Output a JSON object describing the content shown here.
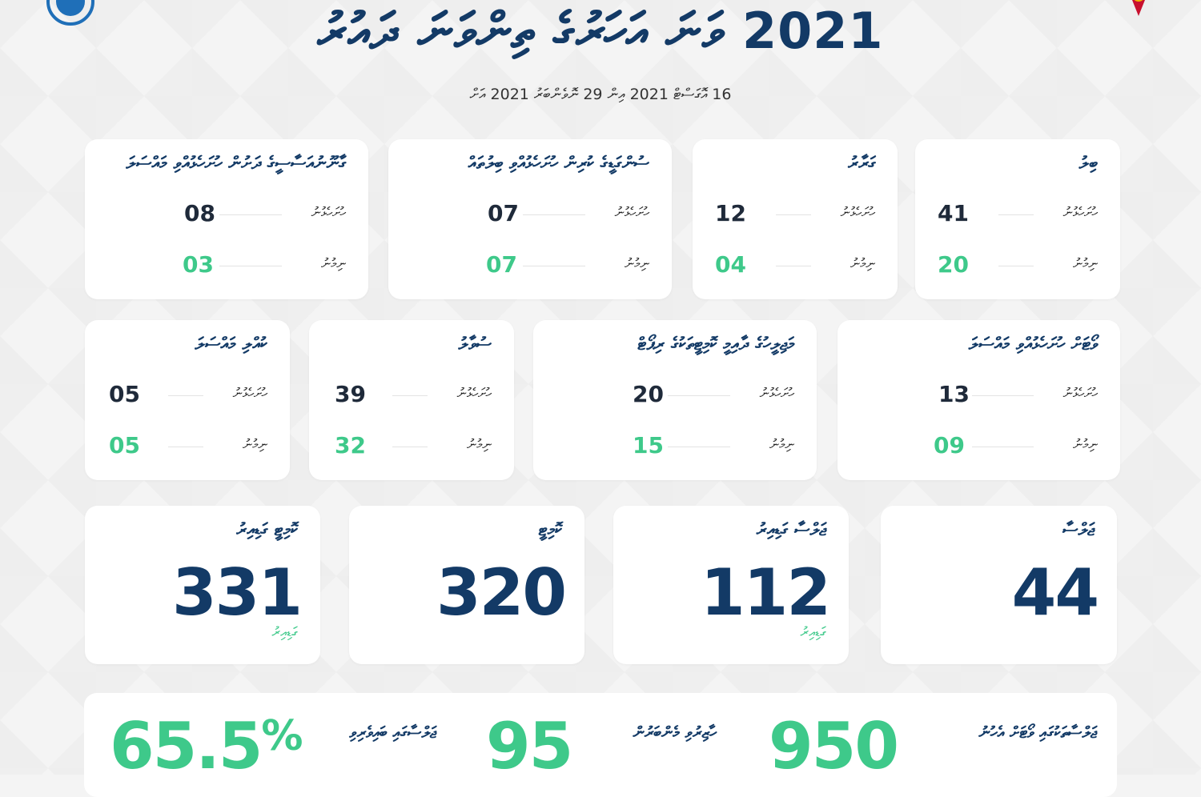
{
  "header": {
    "title": "2021 ވަނަ އަހަރުގެ ތިންވަނަ ދައުރު",
    "subtitle": "16 އޮގަސްޓް 2021 އިން 29 ނޮވެންބަރު 2021 އަށް"
  },
  "labels": {
    "left_row": "ހުށަހެޅުނު",
    "right_row": "ނިމުނު"
  },
  "cards_row1": [
    {
      "title": "ބިލު",
      "submitted": "41",
      "completed": "20"
    },
    {
      "title": "ގަރާރު",
      "submitted": "12",
      "completed": "04"
    },
    {
      "title": "ސުންގަޑީގެ ކުރިން ހުށަހެޅުއްވި ބިލުތައް",
      "submitted": "07",
      "completed": "07"
    },
    {
      "title": "ގާނޫނުއަސާސީގެ ދަށުން ހުށަހެޅުއްވި މައްސަލަ",
      "submitted": "08",
      "completed": "03"
    }
  ],
  "cards_row2": [
    {
      "title": "ވޯޓަށް ހުށަހެޅުއްވި މައްސަލަ",
      "submitted": "13",
      "completed": "09"
    },
    {
      "title": "މަޖިލީހުގެ ދާއިމީ ކޮމިޓީތަކުގެ ރިޕޯޓް",
      "submitted": "20",
      "completed": "15"
    },
    {
      "title": "ސުވާލު",
      "submitted": "39",
      "completed": "32"
    },
    {
      "title": "ކުއްލި މައްސަލަ",
      "submitted": "05",
      "completed": "05"
    }
  ],
  "big_cards": [
    {
      "title": "ޖަލްސާ",
      "value": "44",
      "sub": ""
    },
    {
      "title": "ޖަލްސާ ގަޑިއިރު",
      "value": "112",
      "sub": "ގަޑިއިރު"
    },
    {
      "title": "ކޮމިޓީ",
      "value": "320",
      "sub": ""
    },
    {
      "title": "ކޮމިޓީ ގަޑިއިރު",
      "value": "331",
      "sub": "ގަޑިއިރު"
    }
  ],
  "bottom_stats": [
    {
      "value": "950",
      "pct": "",
      "label": "ޖަލްސާތަކުގައި ވޯޓަށް އެހުނު"
    },
    {
      "value": "95",
      "pct": "",
      "label": "ހާޒިރުވި މެންބަރުން"
    },
    {
      "value": "65.5",
      "pct": "%",
      "label": "ޖަލްސާގައި ބައިވެރިވި"
    }
  ],
  "colors": {
    "navy": "#133a66",
    "green": "#3ec98a",
    "background": "#f4f4f4"
  },
  "icons": {
    "left_logo": "parliament-emblem-icon",
    "right_logo": "state-emblem-icon"
  }
}
